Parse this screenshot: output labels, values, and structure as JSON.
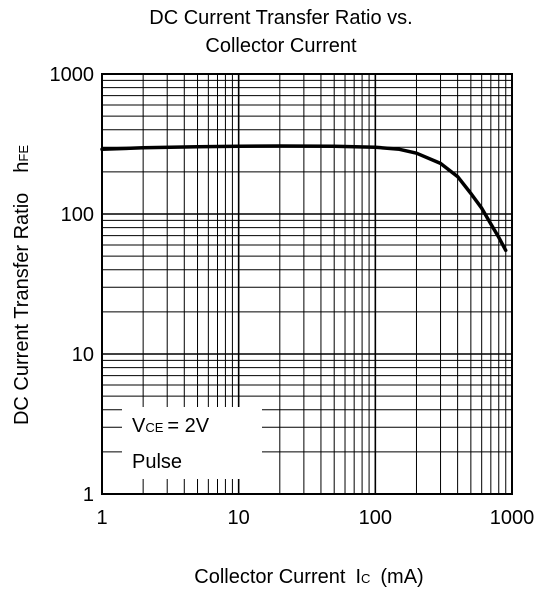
{
  "chart_data": {
    "type": "line",
    "title_line1": "DC Current Transfer Ratio vs.",
    "title_line2": "Collector Current",
    "xlabel_main": "Collector Current",
    "xlabel_symbol": "I",
    "xlabel_symbol_sub": "C",
    "xlabel_unit": "(mA)",
    "ylabel_main": "DC Current Transfer Ratio",
    "ylabel_symbol": "h",
    "ylabel_symbol_sub": "FE",
    "x_scale": "log",
    "y_scale": "log",
    "xlim": [
      1,
      1000
    ],
    "ylim": [
      1,
      1000
    ],
    "x_ticks": [
      "1",
      "10",
      "100",
      "1000"
    ],
    "y_ticks": [
      "1",
      "10",
      "100",
      "1000"
    ],
    "grid": true,
    "annotation": {
      "v_symbol": "V",
      "v_sub": "CE",
      "v_value": "= 2V",
      "line2": "Pulse"
    },
    "series": [
      {
        "x": [
          1,
          2,
          5,
          10,
          20,
          50,
          100,
          150,
          200,
          300,
          400,
          500,
          600,
          700,
          800,
          900
        ],
        "y": [
          290,
          297,
          302,
          305,
          306,
          305,
          300,
          290,
          272,
          230,
          185,
          140,
          110,
          85,
          68,
          55
        ]
      }
    ],
    "line_color": "#000000"
  }
}
